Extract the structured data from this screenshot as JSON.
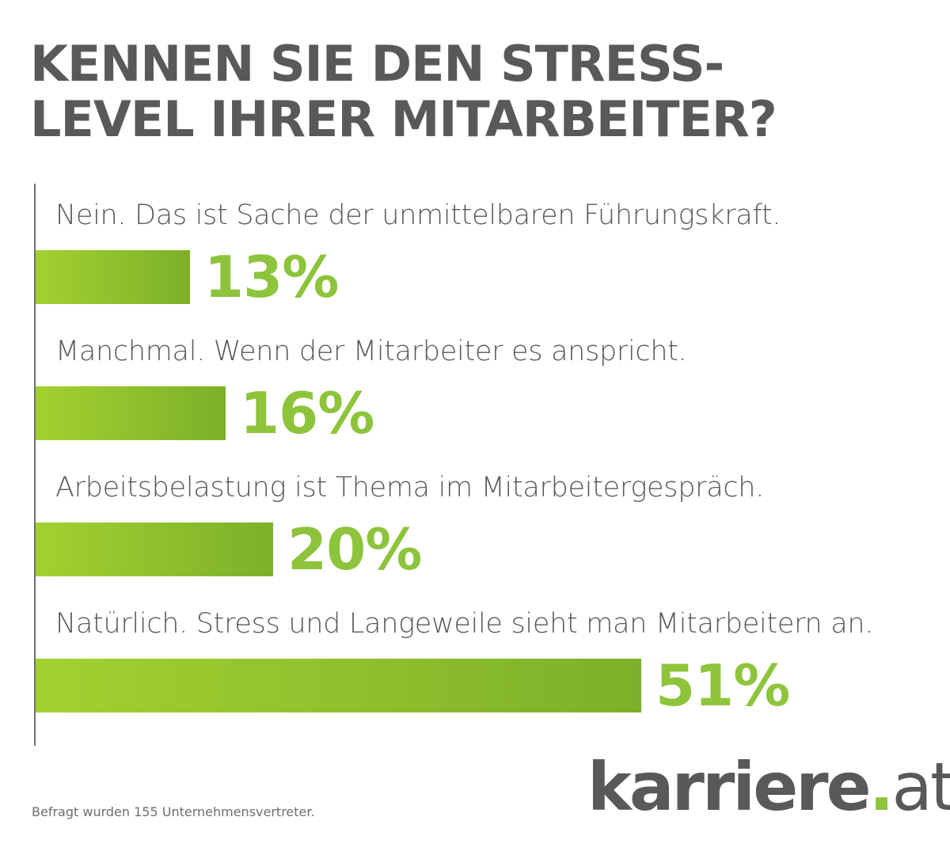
{
  "title": {
    "line1": "KENNEN SIE DEN STRESS-",
    "line2": "LEVEL IHRER MITARBEITER?"
  },
  "chart_data": {
    "type": "bar",
    "orientation": "horizontal",
    "title": "KENNEN SIE DEN STRESS-LEVEL IHRER MITARBEITER?",
    "categories": [
      "Nein. Das ist Sache der unmittelbaren Führungskraft.",
      "Manchmal. Wenn der Mitarbeiter es anspricht.",
      "Arbeitsbelastung ist Thema im Mitarbeitergespräch.",
      "Natürlich. Stress und Langeweile sieht man Mitarbeitern an."
    ],
    "values": [
      13,
      16,
      20,
      51
    ],
    "value_labels": [
      "13%",
      "16%",
      "20%",
      "51%"
    ],
    "unit": "%",
    "grid": false,
    "legend": "none",
    "colors": {
      "bar_start": "#a3d130",
      "bar_end": "#7db02a",
      "value_text": "#8dc43b",
      "label_text": "#58595b"
    }
  },
  "footnote": "Befragt wurden 155 Unternehmensvertreter.",
  "logo": {
    "name": "karriere",
    "dot": ".",
    "tld": "at"
  }
}
